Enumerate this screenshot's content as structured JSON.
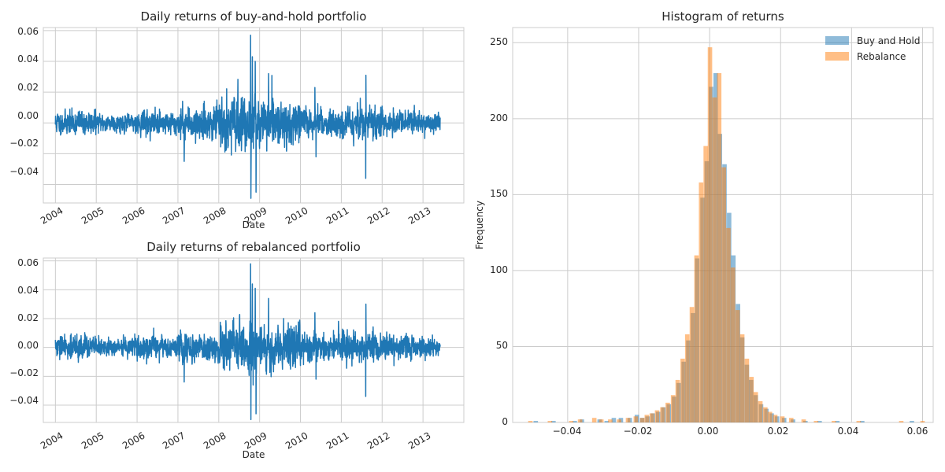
{
  "chart_data": [
    {
      "type": "line",
      "title": "Daily returns of buy-and-hold portfolio",
      "xlabel": "Date",
      "ylabel": "",
      "x_ticks": [
        "2004",
        "2005",
        "2006",
        "2007",
        "2008",
        "2009",
        "2010",
        "2011",
        "2012",
        "2013"
      ],
      "y_ticks": [
        "0.06",
        "0.04",
        "0.02",
        "0.00",
        "−0.02",
        "−0.04"
      ],
      "xlim": [
        "2003-09-15",
        "2014-01-01"
      ],
      "ylim": [
        -0.052,
        0.062
      ],
      "grid": true,
      "color": "#1f77b4",
      "volatility_by_year": [
        {
          "year": 2004,
          "amplitude": 0.006
        },
        {
          "year": 2005,
          "amplitude": 0.0045
        },
        {
          "year": 2006,
          "amplitude": 0.006
        },
        {
          "year": 2007,
          "amplitude": 0.008
        },
        {
          "year": 2008,
          "amplitude": 0.013
        },
        {
          "year": 2009,
          "amplitude": 0.011
        },
        {
          "year": 2010,
          "amplitude": 0.007
        },
        {
          "year": 2011,
          "amplitude": 0.008
        },
        {
          "year": 2012,
          "amplitude": 0.006
        },
        {
          "year": 2013,
          "amplitude": 0.005
        }
      ],
      "spikes": [
        {
          "date": "2008-10-13",
          "value": 0.057
        },
        {
          "date": "2008-10-28",
          "value": 0.043
        },
        {
          "date": "2008-11-24",
          "value": 0.04
        },
        {
          "date": "2008-10-15",
          "value": -0.049
        },
        {
          "date": "2008-12-01",
          "value": -0.045
        },
        {
          "date": "2009-03-23",
          "value": 0.032
        },
        {
          "date": "2007-02-27",
          "value": -0.025
        },
        {
          "date": "2011-08-08",
          "value": -0.036
        },
        {
          "date": "2011-08-09",
          "value": 0.031
        },
        {
          "date": "2010-05-20",
          "value": -0.022
        },
        {
          "date": "2010-05-10",
          "value": 0.023
        }
      ]
    },
    {
      "type": "line",
      "title": "Daily returns of rebalanced portfolio",
      "xlabel": "Date",
      "ylabel": "",
      "x_ticks": [
        "2004",
        "2005",
        "2006",
        "2007",
        "2008",
        "2009",
        "2010",
        "2011",
        "2012",
        "2013"
      ],
      "y_ticks": [
        "0.06",
        "0.04",
        "0.02",
        "0.00",
        "−0.02",
        "−0.04"
      ],
      "xlim": [
        "2003-09-15",
        "2014-01-01"
      ],
      "ylim": [
        -0.052,
        0.062
      ],
      "grid": true,
      "color": "#1f77b4",
      "volatility_by_year": [
        {
          "year": 2004,
          "amplitude": 0.0062
        },
        {
          "year": 2005,
          "amplitude": 0.0047
        },
        {
          "year": 2006,
          "amplitude": 0.0062
        },
        {
          "year": 2007,
          "amplitude": 0.0082
        },
        {
          "year": 2008,
          "amplitude": 0.0135
        },
        {
          "year": 2009,
          "amplitude": 0.0115
        },
        {
          "year": 2010,
          "amplitude": 0.0072
        },
        {
          "year": 2011,
          "amplitude": 0.0082
        },
        {
          "year": 2012,
          "amplitude": 0.0062
        },
        {
          "year": 2013,
          "amplitude": 0.0052
        }
      ],
      "spikes": [
        {
          "date": "2008-10-13",
          "value": 0.058
        },
        {
          "date": "2008-10-28",
          "value": 0.044
        },
        {
          "date": "2008-11-24",
          "value": 0.041
        },
        {
          "date": "2008-10-15",
          "value": -0.05
        },
        {
          "date": "2008-12-01",
          "value": -0.046
        },
        {
          "date": "2009-03-23",
          "value": 0.034
        },
        {
          "date": "2007-02-27",
          "value": -0.024
        },
        {
          "date": "2011-08-08",
          "value": -0.034
        },
        {
          "date": "2011-08-09",
          "value": 0.03
        },
        {
          "date": "2010-05-20",
          "value": -0.022
        },
        {
          "date": "2010-05-10",
          "value": 0.024
        }
      ]
    },
    {
      "type": "histogram",
      "title": "Histogram of returns",
      "xlabel": "",
      "ylabel": "Frequency",
      "x_ticks": [
        "−0.04",
        "−0.02",
        "0.00",
        "0.02",
        "0.04",
        "0.06"
      ],
      "y_ticks": [
        "0",
        "50",
        "100",
        "150",
        "200",
        "250"
      ],
      "xlim": [
        -0.0555,
        0.063
      ],
      "ylim": [
        0,
        260
      ],
      "grid": true,
      "legend_position": "top-right",
      "series": [
        {
          "name": "Buy and Hold",
          "color": "#1f77b4",
          "bins": [
            [
              -0.049,
              1
            ],
            [
              -0.044,
              1
            ],
            [
              -0.038,
              1
            ],
            [
              -0.036,
              2
            ],
            [
              -0.031,
              2
            ],
            [
              -0.029,
              1
            ],
            [
              -0.027,
              3
            ],
            [
              -0.025,
              3
            ],
            [
              -0.0225,
              3
            ],
            [
              -0.0205,
              5
            ],
            [
              -0.019,
              3
            ],
            [
              -0.0175,
              4
            ],
            [
              -0.016,
              6
            ],
            [
              -0.0145,
              7
            ],
            [
              -0.013,
              10
            ],
            [
              -0.0115,
              12
            ],
            [
              -0.01,
              17
            ],
            [
              -0.0087,
              26
            ],
            [
              -0.0073,
              40
            ],
            [
              -0.006,
              54
            ],
            [
              -0.0047,
              72
            ],
            [
              -0.0035,
              108
            ],
            [
              -0.002,
              148
            ],
            [
              -0.0008,
              172
            ],
            [
              0.0004,
              221
            ],
            [
              0.0017,
              230
            ],
            [
              0.0029,
              190
            ],
            [
              0.0042,
              170
            ],
            [
              0.0055,
              138
            ],
            [
              0.0067,
              110
            ],
            [
              0.008,
              78
            ],
            [
              0.0092,
              56
            ],
            [
              0.0105,
              38
            ],
            [
              0.0117,
              28
            ],
            [
              0.013,
              18
            ],
            [
              0.0145,
              12
            ],
            [
              0.016,
              9
            ],
            [
              0.0175,
              6
            ],
            [
              0.019,
              4
            ],
            [
              0.021,
              3
            ],
            [
              0.0235,
              2
            ],
            [
              0.027,
              1
            ],
            [
              0.031,
              1
            ],
            [
              0.036,
              1
            ],
            [
              0.043,
              1
            ],
            [
              0.057,
              1
            ]
          ]
        },
        {
          "name": "Rebalance",
          "color": "#ff7f0e",
          "bins": [
            [
              -0.0505,
              1
            ],
            [
              -0.045,
              1
            ],
            [
              -0.039,
              1
            ],
            [
              -0.0365,
              2
            ],
            [
              -0.0325,
              3
            ],
            [
              -0.0305,
              2
            ],
            [
              -0.028,
              2
            ],
            [
              -0.0255,
              2
            ],
            [
              -0.023,
              3
            ],
            [
              -0.0208,
              4
            ],
            [
              -0.019,
              3
            ],
            [
              -0.0177,
              5
            ],
            [
              -0.0163,
              6
            ],
            [
              -0.0148,
              8
            ],
            [
              -0.0133,
              10
            ],
            [
              -0.0118,
              13
            ],
            [
              -0.0103,
              18
            ],
            [
              -0.009,
              28
            ],
            [
              -0.0076,
              42
            ],
            [
              -0.0063,
              58
            ],
            [
              -0.005,
              76
            ],
            [
              -0.0037,
              110
            ],
            [
              -0.0024,
              158
            ],
            [
              -0.0011,
              182
            ],
            [
              0.0001,
              247
            ],
            [
              0.0014,
              214
            ],
            [
              0.0027,
              230
            ],
            [
              0.004,
              168
            ],
            [
              0.0053,
              128
            ],
            [
              0.0066,
              102
            ],
            [
              0.0079,
              74
            ],
            [
              0.0092,
              58
            ],
            [
              0.0105,
              42
            ],
            [
              0.0118,
              30
            ],
            [
              0.013,
              20
            ],
            [
              0.0143,
              14
            ],
            [
              0.0157,
              10
            ],
            [
              0.017,
              7
            ],
            [
              0.0185,
              5
            ],
            [
              0.0205,
              4
            ],
            [
              0.023,
              3
            ],
            [
              0.0265,
              2
            ],
            [
              0.03,
              1
            ],
            [
              0.035,
              1
            ],
            [
              0.042,
              1
            ],
            [
              0.054,
              1
            ],
            [
              0.06,
              1
            ]
          ]
        }
      ]
    }
  ]
}
